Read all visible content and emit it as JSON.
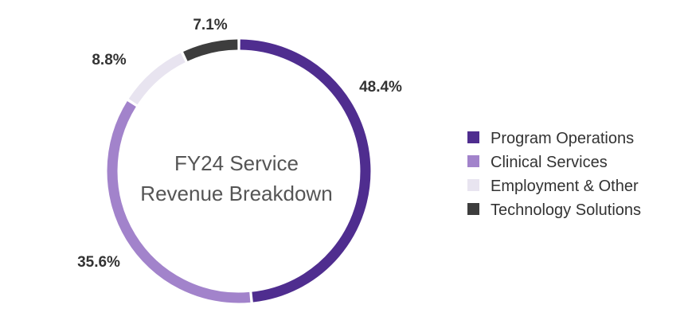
{
  "chart_data": {
    "type": "pie",
    "variant": "donut",
    "title_lines": [
      "FY24 Service",
      "Revenue Breakdown"
    ],
    "categories": [
      "Program Operations",
      "Clinical Services",
      "Employment & Other",
      "Technology Solutions"
    ],
    "values": [
      48.4,
      35.6,
      8.8,
      7.1
    ],
    "value_labels": [
      "48.4%",
      "35.6%",
      "8.8%",
      "7.1%"
    ],
    "colors": [
      "#4f2d8f",
      "#a283cb",
      "#e8e4f0",
      "#3d3d3d"
    ],
    "unit": "%",
    "legend_position": "right"
  }
}
